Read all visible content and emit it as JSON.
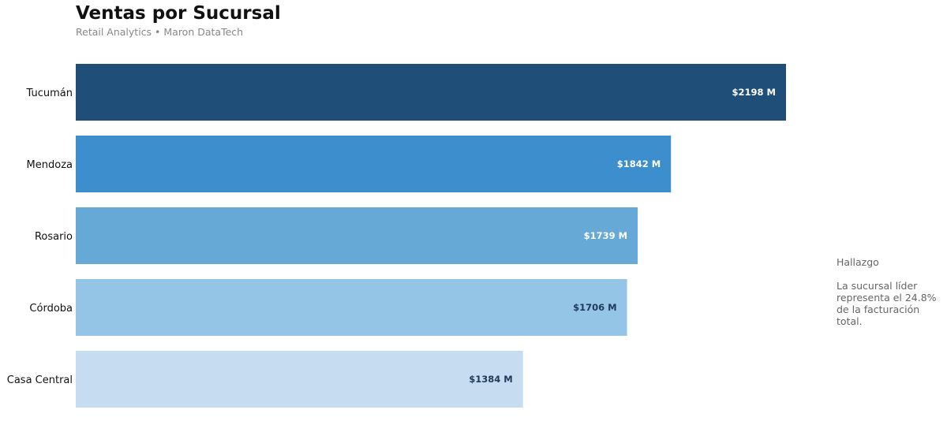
{
  "header": {
    "title": "Ventas por Sucursal",
    "subtitle": "Retail Analytics • Maron DataTech"
  },
  "finding": {
    "title": "Hallazgo",
    "text": "La sucursal líder representa el 24.8% de la facturación total."
  },
  "chart_data": {
    "type": "bar",
    "orientation": "horizontal",
    "title": "Ventas por Sucursal",
    "subtitle": "Retail Analytics • Maron DataTech",
    "categories": [
      "Tucumán",
      "Mendoza",
      "Rosario",
      "Córdoba",
      "Casa Central"
    ],
    "values": [
      2198,
      1842,
      1739,
      1706,
      1384
    ],
    "value_labels": [
      "$2198 M",
      "$1842 M",
      "$1739 M",
      "$1706 M",
      "$1384 M"
    ],
    "colors": [
      "#1f4e79",
      "#3d8ecd",
      "#66a8d6",
      "#94c4e6",
      "#c6dcf1"
    ],
    "label_colors": [
      "#ffffff",
      "#ffffff",
      "#ffffff",
      "#1f3a5a",
      "#1f3a5a"
    ],
    "xlim": [
      0,
      2198
    ],
    "grid": false,
    "legend": "none"
  }
}
